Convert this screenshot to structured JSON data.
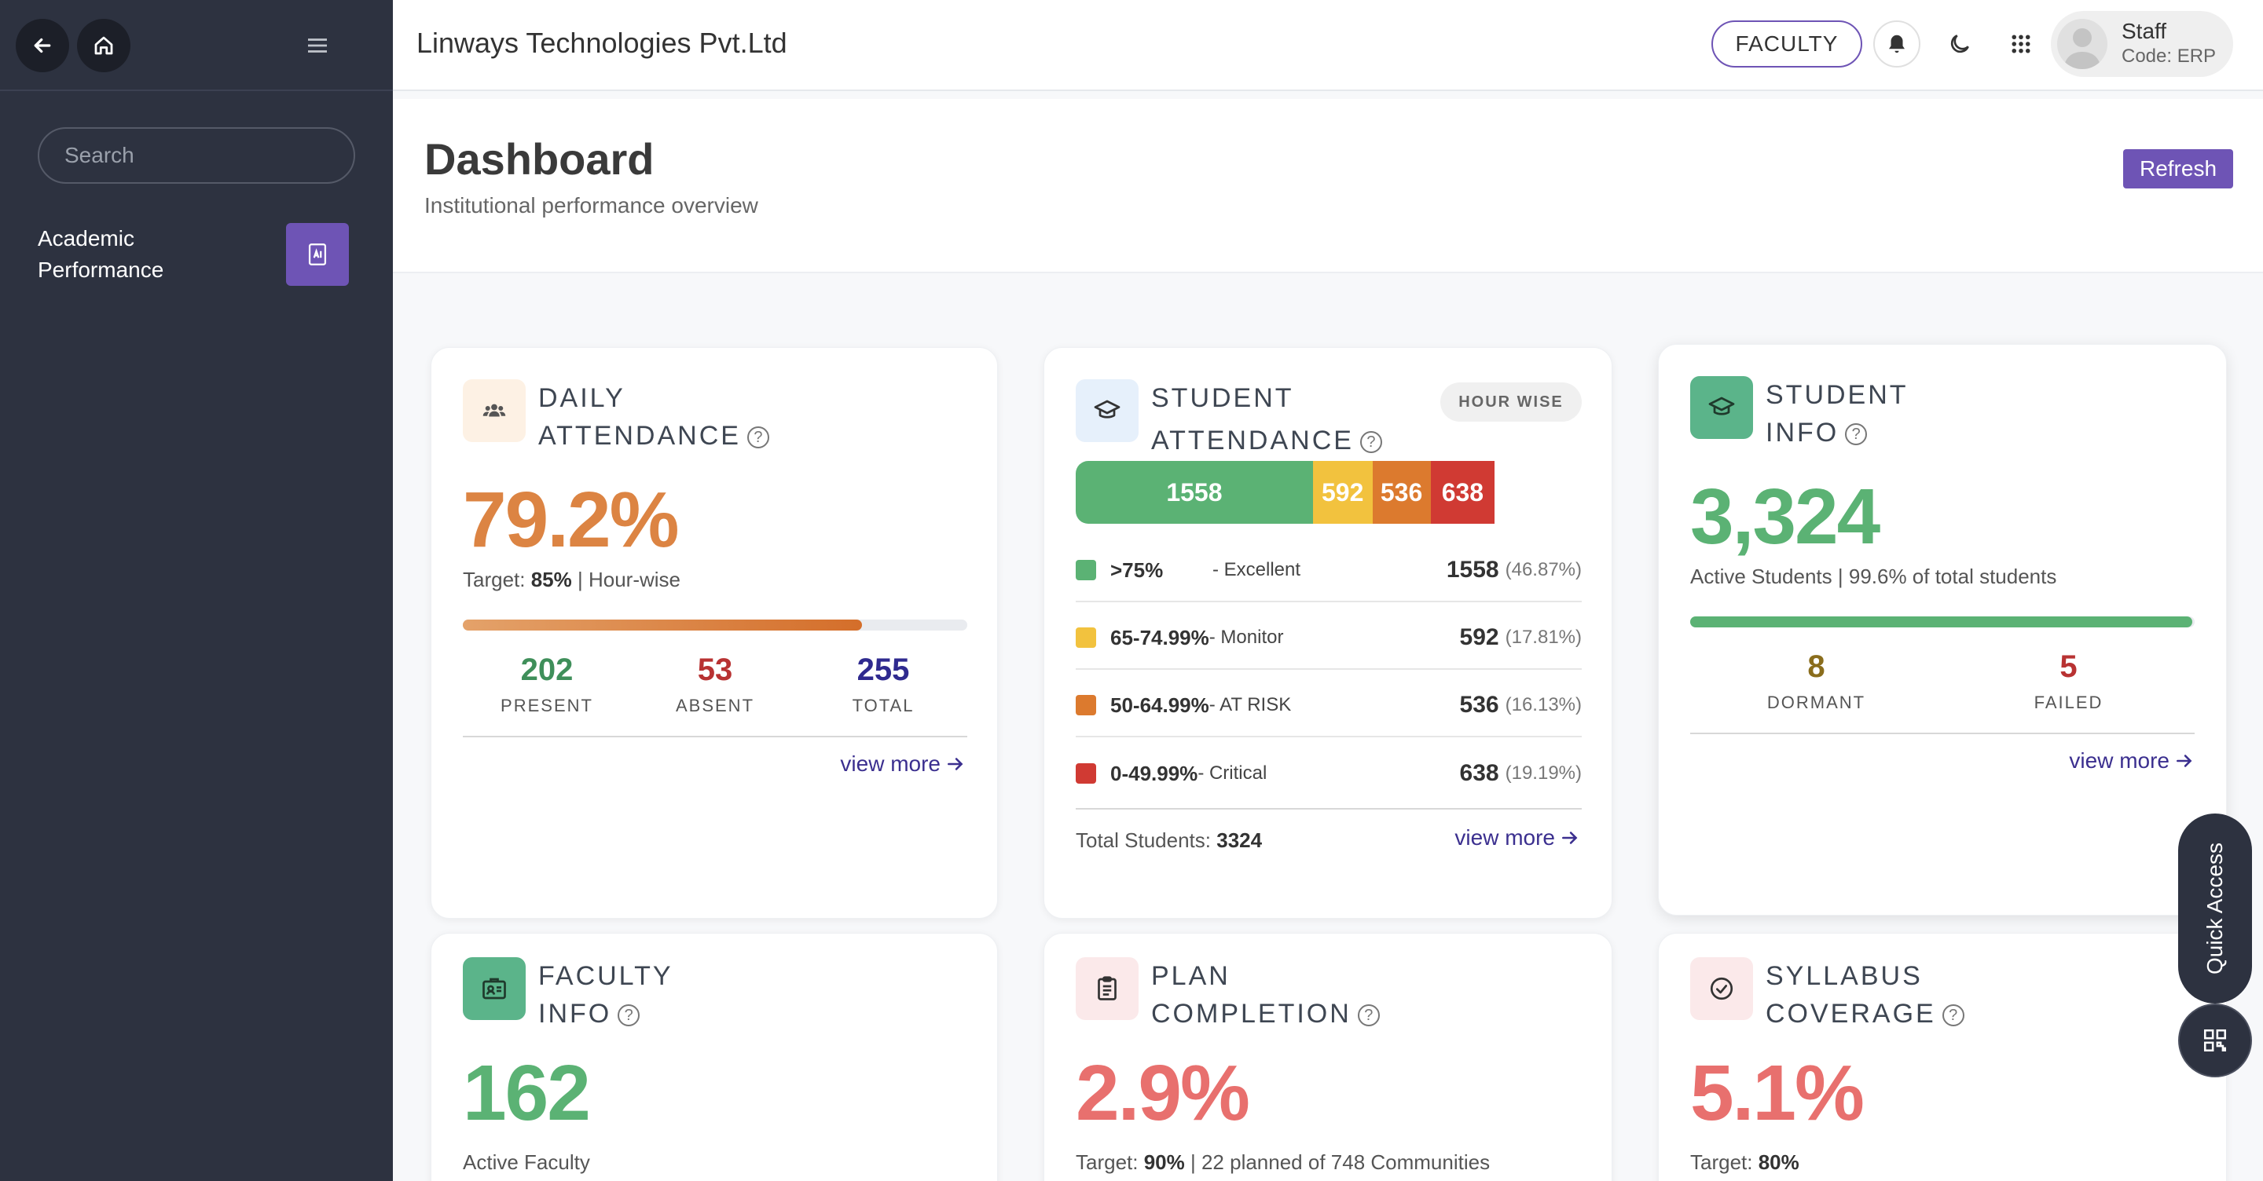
{
  "app": {
    "company_name": "Linways Technologies Pvt.Ltd"
  },
  "sidebar": {
    "search_placeholder": "Search",
    "items": [
      {
        "label": "Academic Performance",
        "icon": "report-book-icon"
      }
    ]
  },
  "header": {
    "role_label": "FACULTY",
    "user_name": "Staff",
    "user_code": "Code: ERP"
  },
  "page": {
    "title": "Dashboard",
    "subtitle": "Institutional performance overview",
    "refresh_label": "Refresh"
  },
  "daily_attendance": {
    "title_line1": "DAILY",
    "title_line2": "ATTENDANCE",
    "value": "79.2%",
    "target_prefix": "Target: ",
    "target_value": "85%",
    "target_suffix": " | Hour-wise",
    "progress_fraction": 0.792,
    "present": "202",
    "present_label": "PRESENT",
    "absent": "53",
    "absent_label": "ABSENT",
    "total": "255",
    "total_label": "TOTAL",
    "view_more": "view more"
  },
  "student_attendance": {
    "title_line1": "STUDENT",
    "title_line2": "ATTENDANCE",
    "badge": "HOUR WISE",
    "segments": [
      {
        "value": 1558,
        "label": "1558",
        "color": "#5bb274"
      },
      {
        "value": 592,
        "label": "592",
        "color": "#f2c23e"
      },
      {
        "value": 536,
        "label": "536",
        "color": "#dc7a2e"
      },
      {
        "value": 638,
        "label": "638",
        "color": "#d03a33"
      }
    ],
    "legend": [
      {
        "range": ">75%",
        "desc": "- Excellent",
        "count": "1558",
        "pct": "(46.87%)",
        "color": "#5bb274"
      },
      {
        "range": "65-74.99%",
        "desc": "- Monitor",
        "count": "592",
        "pct": "(17.81%)",
        "color": "#f2c23e"
      },
      {
        "range": "50-64.99%",
        "desc": "- AT RISK",
        "count": "536",
        "pct": "(16.13%)",
        "color": "#dc7a2e"
      },
      {
        "range": "0-49.99%",
        "desc": " - Critical",
        "count": "638",
        "pct": "(19.19%)",
        "color": "#d03a33"
      }
    ],
    "total_label": "Total Students: ",
    "total_value": "3324",
    "view_more": "view more"
  },
  "student_info": {
    "title_line1": "STUDENT",
    "title_line2": "INFO",
    "value": "3,324",
    "sub": "Active Students | 99.6% of total students",
    "progress_fraction": 0.996,
    "dormant": "8",
    "dormant_label": "DORMANT",
    "failed": "5",
    "failed_label": "FAILED",
    "view_more": "view more"
  },
  "faculty_info": {
    "title_line1": "FACULTY",
    "title_line2": "INFO",
    "value": "162",
    "sub": "Active Faculty"
  },
  "plan_completion": {
    "title_line1": "PLAN",
    "title_line2": "COMPLETION",
    "value": "2.9%",
    "target_prefix": "Target: ",
    "target_value": "90%",
    "target_suffix": " | 22 planned of 748 Communities"
  },
  "syllabus_coverage": {
    "title_line1": "SYLLABUS",
    "title_line2": "COVERAGE",
    "value": "5.1%",
    "target_prefix": "Target: ",
    "target_value": "80%"
  },
  "quick_access": {
    "label": "Quick Access"
  },
  "colors": {
    "accent": "#6e54b5",
    "sidebar": "#2d3240",
    "orange": "#dc8443",
    "green": "#5bb274",
    "red": "#b83232",
    "navy": "#2f2a8f",
    "salmon": "#e8706e",
    "olive": "#8a6d1c"
  }
}
